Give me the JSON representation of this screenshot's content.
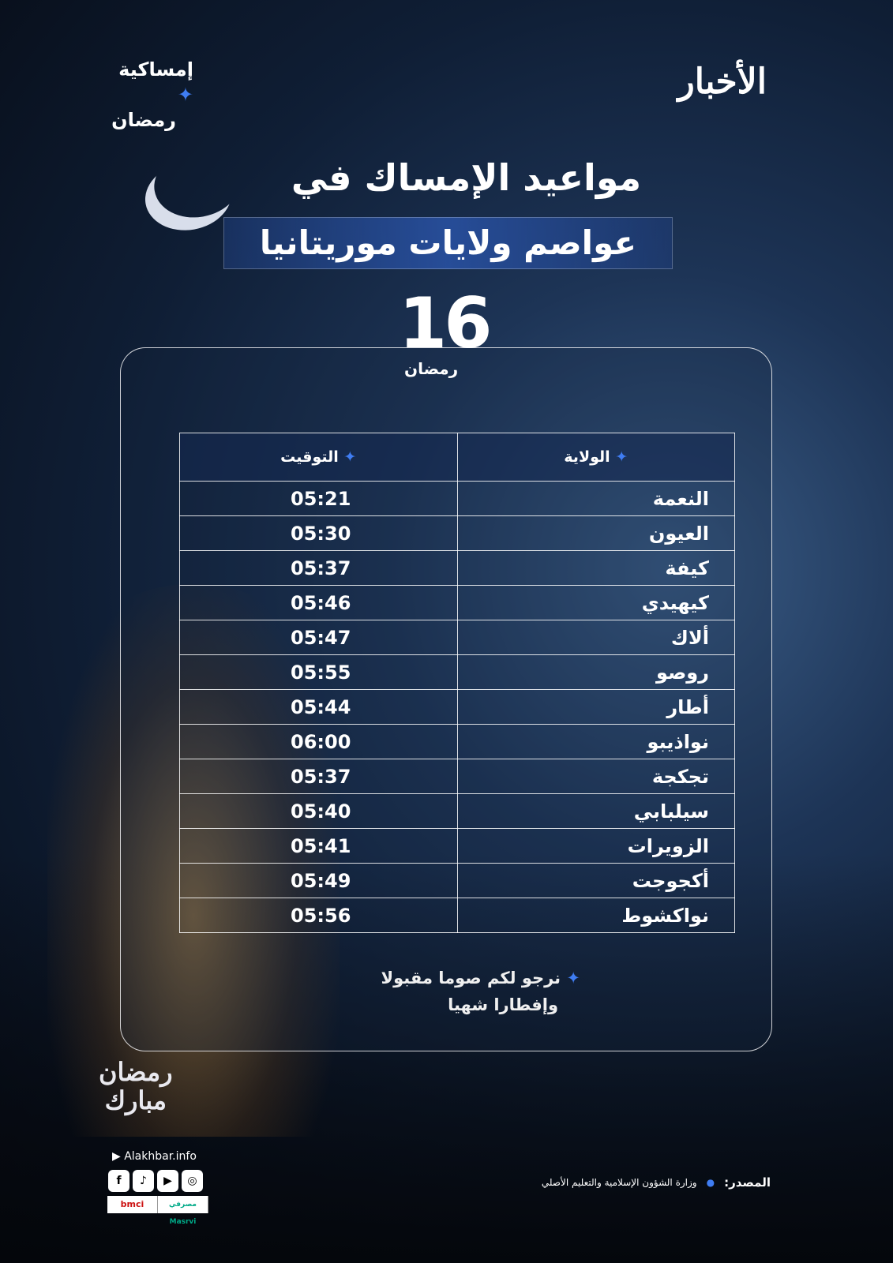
{
  "brand": {
    "logo": "الأخبار",
    "series_line1": "إمساكية",
    "series_line2": "رمضان"
  },
  "title": {
    "line1": "مواعيد الإمساك في",
    "line2": "عواصم ولايات موريتانيا"
  },
  "day": {
    "number": "16",
    "month": "رمضان"
  },
  "table": {
    "headers": {
      "state": "الولاية",
      "time": "التوقيت"
    },
    "rows": [
      {
        "state": "النعمة",
        "time": "05:21"
      },
      {
        "state": "العيون",
        "time": "05:30"
      },
      {
        "state": "كيفة",
        "time": "05:37"
      },
      {
        "state": "كيهيدي",
        "time": "05:46"
      },
      {
        "state": "ألاك",
        "time": "05:47"
      },
      {
        "state": "روصو",
        "time": "05:55"
      },
      {
        "state": "أطار",
        "time": "05:44"
      },
      {
        "state": "نواذيبو",
        "time": "06:00"
      },
      {
        "state": "تجكجة",
        "time": "05:37"
      },
      {
        "state": "سيلبابي",
        "time": "05:40"
      },
      {
        "state": "الزويرات",
        "time": "05:41"
      },
      {
        "state": "أكجوجت",
        "time": "05:49"
      },
      {
        "state": "نواكشوط",
        "time": "05:56"
      }
    ]
  },
  "blessing": {
    "line1": "نرجو لكم صوما مقبولا",
    "line2": "وإفطارا شهيا"
  },
  "greeting": {
    "line1": "رمضان",
    "line2": "مبارك"
  },
  "footer": {
    "website": "Alakhbar.info",
    "socials": [
      "facebook-icon",
      "tiktok-icon",
      "youtube-icon",
      "dribbble-icon"
    ],
    "sponsors": [
      "bmci",
      "مصرفي Masrvi"
    ],
    "source_label": "المصدر:",
    "source": "وزارة الشؤون الإسلامية والتعليم الأصلي"
  },
  "colors": {
    "accent": "#3f7df3",
    "background": "#0f1e35"
  }
}
